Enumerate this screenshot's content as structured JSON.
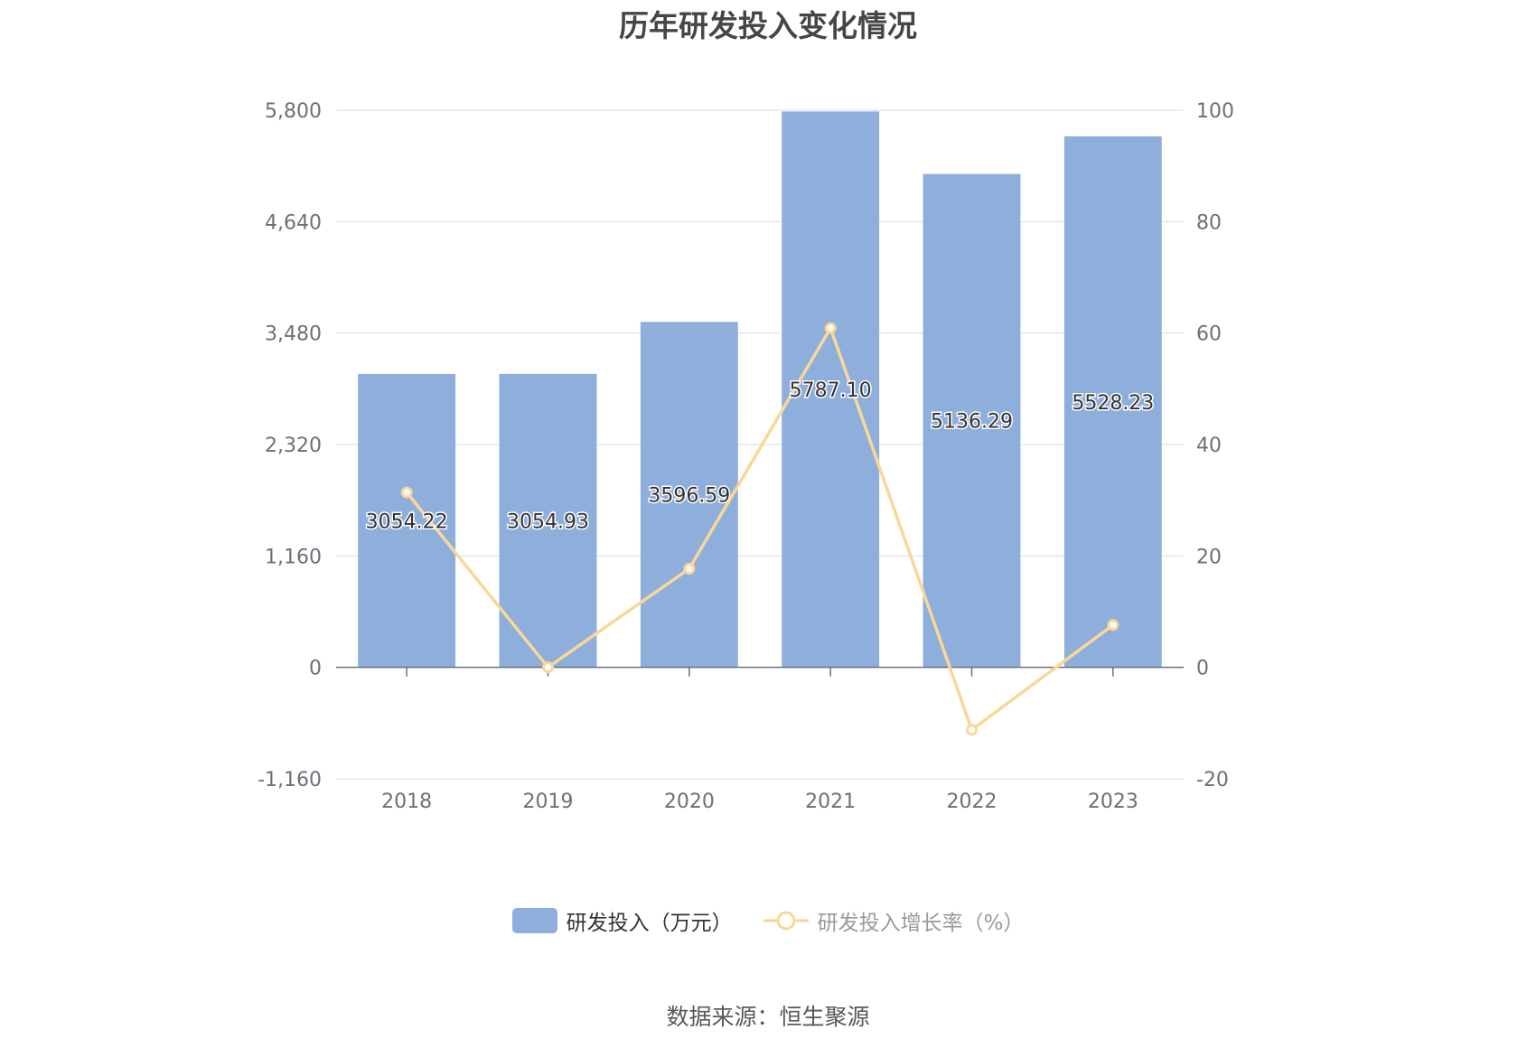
{
  "chart_data": {
    "type": "bar",
    "title": "历年研发投入变化情况",
    "categories": [
      "2018",
      "2019",
      "2020",
      "2021",
      "2022",
      "2023"
    ],
    "series": [
      {
        "name": "研发投入（万元）",
        "type": "bar",
        "axis": "left",
        "color": "#8eaedb",
        "values": [
          3054.22,
          3054.93,
          3596.59,
          5787.1,
          5136.29,
          5528.23
        ],
        "labels": [
          "3054.22",
          "3054.93",
          "3596.59",
          "5787.10",
          "5136.29",
          "5528.23"
        ]
      },
      {
        "name": "研发投入增长率（%）",
        "type": "line",
        "axis": "right",
        "color": "#fad797",
        "values": [
          31.4,
          0.02,
          17.7,
          60.9,
          -11.2,
          7.6
        ]
      }
    ],
    "left_axis": {
      "min": -1160,
      "max": 5800,
      "ticks": [
        -1160,
        0,
        1160,
        2320,
        3480,
        4640,
        5800
      ],
      "tick_labels": [
        "-1,160",
        "0",
        "1,160",
        "2,320",
        "3,480",
        "4,640",
        "5,800"
      ]
    },
    "right_axis": {
      "min": -20,
      "max": 100,
      "ticks": [
        -20,
        0,
        20,
        40,
        60,
        80,
        100
      ],
      "tick_labels": [
        "-20",
        "0",
        "20",
        "40",
        "60",
        "80",
        "100"
      ]
    },
    "grid": true,
    "legend_position": "bottom"
  },
  "source": "数据来源：恒生聚源",
  "colors": {
    "title": "#464646",
    "axis_text": "#6e7079",
    "grid": "#e0e6f1",
    "axis_line": "#6e7079",
    "legend_bar_text": "#333333",
    "legend_line_text": "#999999"
  }
}
